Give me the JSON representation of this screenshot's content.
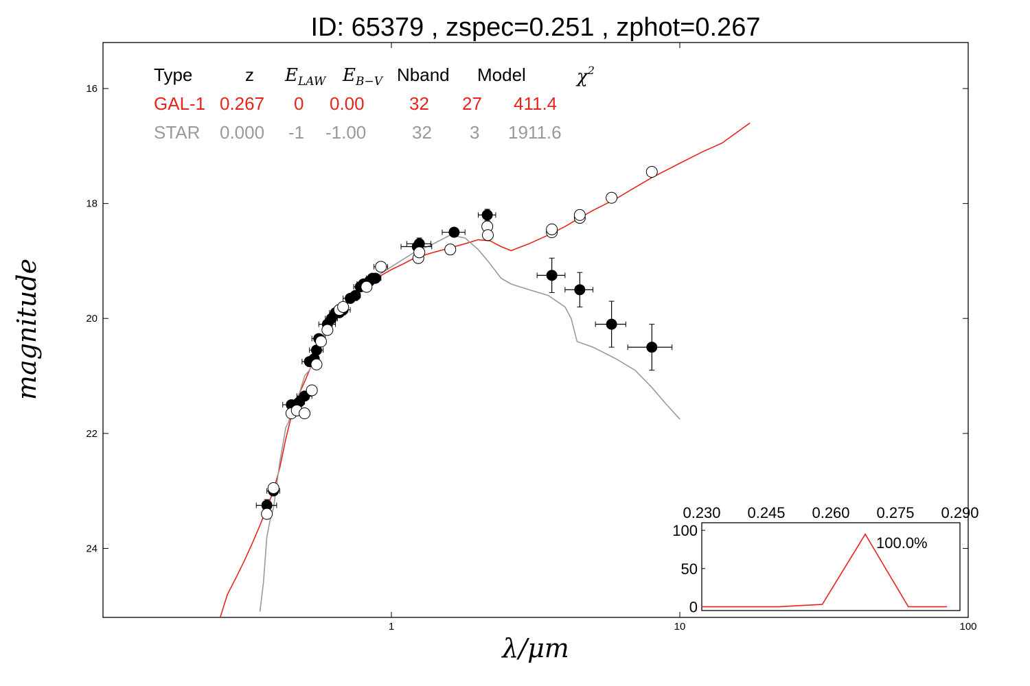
{
  "title": "ID:  65379 , zspec=0.251 , zphot=0.267",
  "colors": {
    "galaxy": "#e8231c",
    "star": "#999999",
    "axis": "#000000"
  },
  "chart_data": [
    {
      "type": "scatter",
      "xlabel": "λ/μm",
      "ylabel": "magnitude",
      "xscale": "log",
      "xlim": [
        0.1,
        100
      ],
      "ylim": [
        25.2,
        15.2
      ],
      "y_inverted": true,
      "xticks": [
        {
          "value": 1,
          "label": "1"
        },
        {
          "value": 10,
          "label": "10"
        },
        {
          "value": 100,
          "label": "100"
        }
      ],
      "yticks": [
        {
          "value": 16,
          "label": "16"
        },
        {
          "value": 18,
          "label": "18"
        },
        {
          "value": 20,
          "label": "20"
        },
        {
          "value": 22,
          "label": "22"
        },
        {
          "value": 24,
          "label": "24"
        }
      ],
      "legend_table": {
        "headers": [
          "Type",
          "z",
          "E_LAW",
          "E_B−V",
          "Nband",
          "Model",
          "χ²"
        ],
        "rows": [
          {
            "type": "GAL-1",
            "z": "0.267",
            "e_law": "0",
            "e_bv": "0.00",
            "nband": "32",
            "model": "27",
            "chi2": "411.4",
            "color": "#e8231c"
          },
          {
            "type": "STAR",
            "z": "0.000",
            "e_law": "-1",
            "e_bv": "-1.00",
            "nband": "32",
            "model": "3",
            "chi2": "1911.6",
            "color": "#999999"
          }
        ]
      },
      "series": [
        {
          "name": "GAL-1",
          "style": "line",
          "color": "#e8231c",
          "x": [
            0.255,
            0.27,
            0.29,
            0.31,
            0.33,
            0.35,
            0.37,
            0.39,
            0.41,
            0.43,
            0.45,
            0.47,
            0.5,
            0.53,
            0.56,
            0.6,
            0.65,
            0.7,
            0.75,
            0.8,
            0.85,
            0.9,
            1.0,
            1.1,
            1.2,
            1.4,
            1.6,
            1.8,
            2.0,
            2.2,
            2.4,
            2.6,
            3.0,
            3.5,
            4.0,
            4.5,
            5.0,
            6.0,
            7.0,
            8.0,
            10.0,
            12.0,
            14.0,
            17.5
          ],
          "y": [
            25.2,
            24.8,
            24.5,
            24.2,
            23.9,
            23.6,
            23.3,
            23.0,
            22.6,
            22.1,
            21.7,
            21.4,
            21.1,
            20.8,
            20.5,
            20.15,
            19.95,
            19.75,
            19.6,
            19.45,
            19.35,
            19.28,
            19.15,
            19.05,
            18.95,
            18.85,
            18.77,
            18.7,
            18.63,
            18.65,
            18.75,
            18.82,
            18.7,
            18.55,
            18.4,
            18.25,
            18.12,
            17.92,
            17.72,
            17.55,
            17.3,
            17.1,
            16.95,
            16.6
          ]
        },
        {
          "name": "STAR",
          "style": "line",
          "color": "#999999",
          "x": [
            0.35,
            0.36,
            0.37,
            0.38,
            0.39,
            0.4,
            0.41,
            0.42,
            0.43,
            0.44,
            0.46,
            0.48,
            0.5,
            0.52,
            0.55,
            0.6,
            0.65,
            0.7,
            0.8,
            0.9,
            1.0,
            1.2,
            1.4,
            1.6,
            1.8,
            2.0,
            2.2,
            2.4,
            2.6,
            3.0,
            3.5,
            4.0,
            4.2,
            4.4,
            5.0,
            6.0,
            7.0,
            8.0,
            9.0,
            10.0
          ],
          "y": [
            25.1,
            24.6,
            23.8,
            23.5,
            23.3,
            22.9,
            22.5,
            22.2,
            21.9,
            21.8,
            21.5,
            21.3,
            21.0,
            20.9,
            20.6,
            20.2,
            19.95,
            19.75,
            19.45,
            19.25,
            19.1,
            18.85,
            18.7,
            18.55,
            18.6,
            18.8,
            19.05,
            19.3,
            19.4,
            19.5,
            19.6,
            19.8,
            20.0,
            20.4,
            20.5,
            20.7,
            20.9,
            21.2,
            21.5,
            21.75
          ]
        },
        {
          "name": "observed",
          "style": "filled-circles",
          "color": "#000000",
          "x": [
            0.37,
            0.39,
            0.45,
            0.46,
            0.48,
            0.5,
            0.52,
            0.54,
            0.55,
            0.56,
            0.6,
            0.62,
            0.64,
            0.66,
            0.68,
            0.72,
            0.75,
            0.78,
            0.8,
            0.84,
            0.86,
            0.88,
            0.92,
            1.23,
            1.25,
            1.65,
            2.15,
            3.6,
            4.5,
            5.8,
            8.0
          ],
          "y": [
            23.25,
            23.0,
            21.5,
            21.6,
            21.45,
            21.35,
            20.75,
            20.7,
            20.55,
            20.35,
            20.1,
            20.0,
            19.9,
            19.9,
            19.85,
            19.65,
            19.6,
            19.45,
            19.4,
            19.35,
            19.3,
            19.3,
            19.1,
            18.75,
            18.7,
            18.5,
            18.2,
            19.25,
            19.5,
            20.1,
            20.5
          ],
          "xerr": [
            0.03,
            0.02,
            0.03,
            0.02,
            0.02,
            0.03,
            0.03,
            0.02,
            0.03,
            0.03,
            0.04,
            0.03,
            0.03,
            0.03,
            0.04,
            0.04,
            0.03,
            0.04,
            0.04,
            0.04,
            0.04,
            0.04,
            0.05,
            0.15,
            0.12,
            0.15,
            0.15,
            0.4,
            0.5,
            0.7,
            1.4
          ],
          "yerr": [
            0.1,
            0.05,
            0.05,
            0.05,
            0.05,
            0.05,
            0.05,
            0.05,
            0.05,
            0.05,
            0.05,
            0.05,
            0.05,
            0.05,
            0.05,
            0.05,
            0.05,
            0.05,
            0.05,
            0.05,
            0.05,
            0.05,
            0.05,
            0.1,
            0.1,
            0.05,
            0.1,
            0.3,
            0.3,
            0.4,
            0.4
          ]
        },
        {
          "name": "model",
          "style": "open-circles",
          "color": "#000000",
          "x": [
            0.37,
            0.39,
            0.45,
            0.47,
            0.5,
            0.53,
            0.55,
            0.57,
            0.6,
            0.66,
            0.68,
            0.82,
            0.92,
            1.24,
            1.25,
            1.6,
            2.15,
            2.16,
            3.6,
            3.6,
            4.5,
            4.5,
            5.8,
            8.0
          ],
          "y": [
            23.4,
            22.95,
            21.65,
            21.6,
            21.65,
            21.25,
            20.8,
            20.4,
            20.2,
            19.85,
            19.8,
            19.45,
            19.1,
            18.95,
            18.85,
            18.8,
            18.4,
            18.55,
            18.5,
            18.45,
            18.25,
            18.2,
            17.9,
            17.45
          ]
        }
      ]
    },
    {
      "type": "line",
      "title": "",
      "xlim": [
        0.23,
        0.29
      ],
      "ylim": [
        -5,
        110
      ],
      "xticks": [
        {
          "value": 0.23,
          "label": "0.230"
        },
        {
          "value": 0.245,
          "label": "0.245"
        },
        {
          "value": 0.26,
          "label": "0.260"
        },
        {
          "value": 0.275,
          "label": "0.275"
        },
        {
          "value": 0.29,
          "label": "0.290"
        }
      ],
      "yticks": [
        {
          "value": 0,
          "label": "0"
        },
        {
          "value": 50,
          "label": "50"
        },
        {
          "value": 100,
          "label": "100"
        }
      ],
      "annotation": "100.0%",
      "series": [
        {
          "name": "PDZ",
          "color": "#e8231c",
          "x": [
            0.23,
            0.248,
            0.258,
            0.268,
            0.278,
            0.287
          ],
          "y": [
            0,
            0,
            3,
            95,
            0,
            0
          ]
        }
      ]
    }
  ]
}
